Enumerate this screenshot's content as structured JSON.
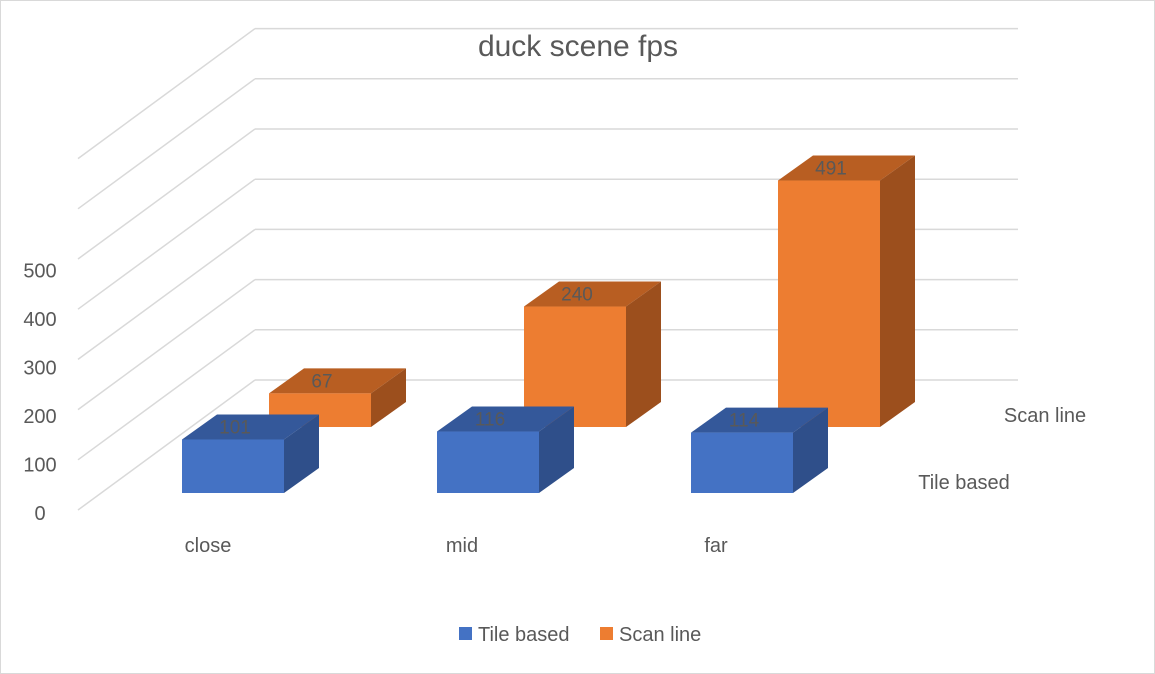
{
  "chart_data": {
    "type": "bar",
    "title": "duck scene fps",
    "categories": [
      "close",
      "mid",
      "far"
    ],
    "series": [
      {
        "name": "Tile based",
        "values": [
          101,
          116,
          114
        ],
        "color": "#4472C4",
        "side_color": "#2F4F8A",
        "top_color": "#34589A"
      },
      {
        "name": "Scan line",
        "values": [
          67,
          240,
          491
        ],
        "color": "#ED7D31",
        "side_color": "#9C4F1D",
        "top_color": "#B85E22"
      }
    ],
    "yticks": [
      "0",
      "100",
      "200",
      "300",
      "400",
      "500"
    ],
    "ylim": [
      0,
      500
    ],
    "grid": true,
    "depth_labels": [
      "Tile based",
      "Scan line"
    ],
    "legend_position": "bottom"
  }
}
